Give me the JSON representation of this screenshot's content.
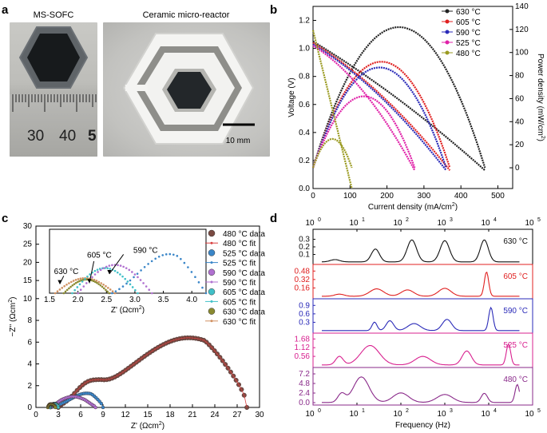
{
  "panels": {
    "a": {
      "letter": "a",
      "label_left": "MS-SOFC",
      "label_right": "Ceramic micro-reactor",
      "ruler_numbers": [
        "30",
        "40",
        "5"
      ],
      "scale_bar": "10 mm"
    },
    "b": {
      "letter": "b"
    },
    "c": {
      "letter": "c"
    },
    "d": {
      "letter": "d"
    }
  },
  "chart_data": [
    {
      "id": "b",
      "type": "line",
      "title": "",
      "xlabel": "Current density (mA/cm2)",
      "ylabel": "Voltage (V)",
      "y2label": "Power density (mW/cm2)",
      "xlim": [
        0,
        540
      ],
      "xticks": [
        "0",
        "100",
        "200",
        "300",
        "400",
        "500"
      ],
      "ylim": [
        0,
        1.3
      ],
      "yticks": [
        "0.0",
        "0.2",
        "0.4",
        "0.6",
        "0.8",
        "1.0",
        "1.2"
      ],
      "y2lim": [
        -18,
        140
      ],
      "y2ticks": [
        "0",
        "20",
        "40",
        "60",
        "80",
        "100",
        "120",
        "140"
      ],
      "legend": "top-right",
      "series": [
        {
          "name": "630 °C",
          "color": "#222222",
          "ocv": 1.05,
          "imax": 465,
          "pmax": 122,
          "ipmax": 245
        },
        {
          "name": "605 °C",
          "color": "#e02020",
          "ocv": 1.04,
          "imax": 370,
          "pmax": 92,
          "ipmax": 200
        },
        {
          "name": "590 °C",
          "color": "#2a2ab8",
          "ocv": 1.03,
          "imax": 360,
          "pmax": 87,
          "ipmax": 195
        },
        {
          "name": "525 °C",
          "color": "#e020a8",
          "ocv": 1.02,
          "imax": 275,
          "pmax": 62,
          "ipmax": 150
        },
        {
          "name": "480 °C",
          "color": "#9a9a20",
          "ocv": 1.13,
          "imax": 105,
          "pmax": 25,
          "ipmax": 55
        }
      ]
    },
    {
      "id": "c",
      "type": "scatter",
      "xlabel": "Z' (Ωcm2)",
      "ylabel": "−Z'' (Ωcm2)",
      "xlim": [
        0,
        30
      ],
      "xticks": [
        "0",
        "3",
        "6",
        "9",
        "12",
        "15",
        "18",
        "21",
        "24",
        "27",
        "30"
      ],
      "ylim": [
        0,
        30
      ],
      "yticks": [
        "0",
        "2",
        "4",
        "6",
        "8",
        "10",
        "15",
        "20",
        "25",
        "30"
      ],
      "legend": "right",
      "legend_entries": [
        {
          "name": "480 °C data",
          "color": "#7a4a42",
          "kind": "data"
        },
        {
          "name": "480 °C fit",
          "color": "#d84040",
          "kind": "fit"
        },
        {
          "name": "525 °C data",
          "color": "#3a86c8",
          "kind": "data"
        },
        {
          "name": "525 °C fit",
          "color": "#3a86c8",
          "kind": "fit"
        },
        {
          "name": "590 °C data",
          "color": "#b070d0",
          "kind": "data"
        },
        {
          "name": "590 °C fit",
          "color": "#b070d0",
          "kind": "fit"
        },
        {
          "name": "605 °C data",
          "color": "#40c0c8",
          "kind": "data"
        },
        {
          "name": "605 °C fit",
          "color": "#40c0c8",
          "kind": "fit"
        },
        {
          "name": "630 °C data",
          "color": "#8a8a30",
          "kind": "data"
        },
        {
          "name": "630 °C fit",
          "color": "#d09060",
          "kind": "fit"
        }
      ],
      "arcs": [
        {
          "name": "480",
          "color": "#7a4a42",
          "x0": 3.0,
          "x1": 28.3,
          "peaks": [
            [
              6.5,
              1.5,
              1.5
            ],
            [
              20.5,
              6.4,
              6.5
            ]
          ]
        },
        {
          "name": "525",
          "color": "#3a86c8",
          "x0": 2.0,
          "x1": 9.0,
          "peaks": [
            [
              6.8,
              1.3,
              1.8
            ]
          ]
        },
        {
          "name": "590",
          "color": "#b070d0",
          "x0": 2.0,
          "x1": 8.0,
          "peaks": [
            [
              5.0,
              1.0,
              1.6
            ]
          ]
        },
        {
          "name": "605",
          "color": "#40c0c8",
          "x0": 1.9,
          "x1": 3.0,
          "peaks": [
            [
              2.5,
              0.35,
              0.5
            ]
          ]
        },
        {
          "name": "630",
          "color": "#8a8a30",
          "x0": 1.6,
          "x1": 2.6,
          "peaks": [
            [
              2.0,
              0.3,
              0.4
            ]
          ]
        }
      ],
      "inset": {
        "xlabel": "Z' (Ωcm2)",
        "xlim": [
          1.5,
          4.25
        ],
        "xticks": [
          "1.5",
          "2.0",
          "2.5",
          "3.0",
          "3.5",
          "4.0"
        ],
        "ylim": [
          0,
          1.4
        ],
        "annotations": [
          "630 °C",
          "605 °C",
          "590 °C"
        ]
      }
    },
    {
      "id": "d",
      "type": "line",
      "xlabel": "Frequency (Hz)",
      "xscale": "log",
      "xlim_exp": [
        0,
        5
      ],
      "xticks_top": [
        {
          "base": "10",
          "exp": "0"
        },
        {
          "base": "10",
          "exp": "1"
        },
        {
          "base": "10",
          "exp": "2"
        },
        {
          "base": "10",
          "exp": "3"
        },
        {
          "base": "10",
          "exp": "4"
        },
        {
          "base": "10",
          "exp": "5"
        }
      ],
      "xticks_bottom": [
        {
          "base": "10",
          "exp": "0"
        },
        {
          "base": "10",
          "exp": "1"
        },
        {
          "base": "10",
          "exp": "2"
        },
        {
          "base": "10",
          "exp": "3"
        },
        {
          "base": "10",
          "exp": "4"
        },
        {
          "base": "10",
          "exp": "5"
        }
      ],
      "panels": [
        {
          "label": "630 °C",
          "color": "#111111",
          "yticks": [
            "0.3",
            "0.2",
            "0.1"
          ],
          "ylim": [
            0,
            0.4
          ],
          "tickvals": [
            0.3,
            0.2,
            0.1
          ],
          "peaks": [
            [
              0.5,
              0.03,
              0.15
            ],
            [
              1.42,
              0.17,
              0.13
            ],
            [
              2.25,
              0.29,
              0.15
            ],
            [
              3.0,
              0.28,
              0.15
            ],
            [
              3.9,
              0.29,
              0.13
            ]
          ]
        },
        {
          "label": "605 °C",
          "color": "#e02020",
          "yticks": [
            "0.48",
            "0.32",
            "0.16"
          ],
          "ylim": [
            0,
            0.56
          ],
          "tickvals": [
            0.48,
            0.32,
            0.16
          ],
          "peaks": [
            [
              0.6,
              0.04,
              0.15
            ],
            [
              1.45,
              0.14,
              0.22
            ],
            [
              2.15,
              0.12,
              0.2
            ],
            [
              3.0,
              0.15,
              0.2
            ],
            [
              3.95,
              0.46,
              0.07
            ]
          ]
        },
        {
          "label": "590 °C",
          "color": "#2a2ab8",
          "yticks": [
            "0.9",
            "0.6",
            "0.3"
          ],
          "ylim": [
            0,
            1.05
          ],
          "tickvals": [
            0.9,
            0.6,
            0.3
          ],
          "peaks": [
            [
              1.4,
              0.3,
              0.08
            ],
            [
              1.75,
              0.35,
              0.12
            ],
            [
              2.3,
              0.25,
              0.2
            ],
            [
              3.05,
              0.4,
              0.15
            ],
            [
              4.05,
              0.82,
              0.07
            ]
          ]
        },
        {
          "label": "525 °C",
          "color": "#d8208f",
          "yticks": [
            "1.68",
            "1.12",
            "0.56"
          ],
          "ylim": [
            0,
            1.9
          ],
          "tickvals": [
            1.68,
            1.12,
            0.56
          ],
          "peaks": [
            [
              0.6,
              0.55,
              0.12
            ],
            [
              1.3,
              1.25,
              0.3
            ],
            [
              2.5,
              0.55,
              0.25
            ],
            [
              3.5,
              0.9,
              0.15
            ],
            [
              4.45,
              1.35,
              0.07
            ]
          ]
        },
        {
          "label": "480 °C",
          "color": "#8a2a8a",
          "yticks": [
            "7.2",
            "4.8",
            "2.4",
            "0.0"
          ],
          "ylim": [
            0,
            8.2
          ],
          "tickvals": [
            7.2,
            4.8,
            2.4,
            0.0
          ],
          "peaks": [
            [
              0.65,
              2.2,
              0.12
            ],
            [
              1.1,
              6.4,
              0.25
            ],
            [
              2.0,
              2.4,
              0.25
            ],
            [
              3.0,
              2.0,
              0.25
            ],
            [
              3.9,
              2.3,
              0.1
            ],
            [
              4.65,
              4.5,
              0.07
            ]
          ]
        }
      ]
    }
  ]
}
